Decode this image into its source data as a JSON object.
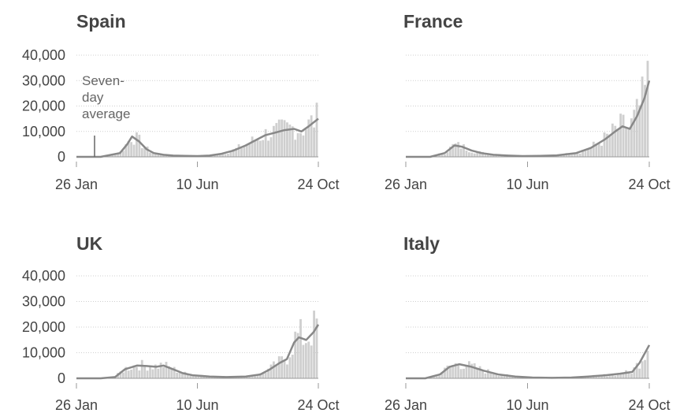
{
  "chart_data": [
    {
      "type": "area",
      "title": "Spain",
      "x_labels": [
        "26 Jan",
        "10 Jun",
        "24 Oct"
      ],
      "y_ticks": [
        "40,000",
        "30,000",
        "20,000",
        "10,000",
        "0"
      ],
      "ylim": [
        0,
        40000
      ],
      "annotation": [
        "Seven-",
        "day",
        "average"
      ],
      "series": [
        {
          "x_fraction": [
            0,
            0.1,
            0.18,
            0.21,
            0.23,
            0.26,
            0.29,
            0.32,
            0.36,
            0.4,
            0.45,
            0.5,
            0.55,
            0.6,
            0.65,
            0.7,
            0.75,
            0.78,
            0.82,
            0.86,
            0.9,
            0.93,
            0.96,
            1.0
          ],
          "values": [
            0,
            0,
            1500,
            5000,
            8000,
            6000,
            3000,
            1500,
            800,
            500,
            400,
            300,
            500,
            1200,
            2500,
            4500,
            7000,
            8500,
            9500,
            10500,
            11000,
            10000,
            12000,
            15000
          ]
        }
      ]
    },
    {
      "type": "area",
      "title": "France",
      "x_labels": [
        "26 Jan",
        "10 Jun",
        "24 Oct"
      ],
      "y_ticks": [],
      "ylim": [
        0,
        40000
      ],
      "series": [
        {
          "x_fraction": [
            0,
            0.1,
            0.16,
            0.2,
            0.23,
            0.27,
            0.31,
            0.36,
            0.42,
            0.48,
            0.55,
            0.62,
            0.7,
            0.76,
            0.82,
            0.86,
            0.89,
            0.92,
            0.95,
            0.98,
            1.0
          ],
          "values": [
            0,
            0,
            1500,
            4500,
            4000,
            2500,
            1500,
            800,
            500,
            300,
            400,
            600,
            1500,
            3500,
            7000,
            10000,
            12000,
            11000,
            16000,
            23000,
            30000
          ]
        }
      ]
    },
    {
      "type": "area",
      "title": "UK",
      "x_labels": [
        "26 Jan",
        "10 Jun",
        "24 Oct"
      ],
      "y_ticks": [
        "40,000",
        "30,000",
        "20,000",
        "10,000",
        "0"
      ],
      "ylim": [
        0,
        40000
      ],
      "series": [
        {
          "x_fraction": [
            0,
            0.1,
            0.16,
            0.2,
            0.25,
            0.29,
            0.33,
            0.36,
            0.4,
            0.44,
            0.48,
            0.55,
            0.62,
            0.7,
            0.76,
            0.8,
            0.84,
            0.87,
            0.9,
            0.92,
            0.95,
            0.98,
            1.0
          ],
          "values": [
            0,
            0,
            500,
            3500,
            5000,
            4800,
            4500,
            5000,
            3500,
            2000,
            1200,
            700,
            500,
            700,
            1500,
            3500,
            6000,
            7500,
            14000,
            16000,
            15000,
            18000,
            21000
          ]
        }
      ]
    },
    {
      "type": "area",
      "title": "Italy",
      "x_labels": [
        "26 Jan",
        "10 Jun",
        "24 Oct"
      ],
      "y_ticks": [],
      "ylim": [
        0,
        40000
      ],
      "series": [
        {
          "x_fraction": [
            0,
            0.08,
            0.14,
            0.18,
            0.22,
            0.27,
            0.32,
            0.38,
            0.45,
            0.52,
            0.6,
            0.68,
            0.75,
            0.82,
            0.88,
            0.93,
            0.96,
            1.0
          ],
          "values": [
            0,
            0,
            1500,
            4500,
            5500,
            4500,
            3000,
            1500,
            700,
            300,
            200,
            300,
            700,
            1200,
            1800,
            2500,
            6000,
            13000
          ]
        }
      ]
    }
  ]
}
